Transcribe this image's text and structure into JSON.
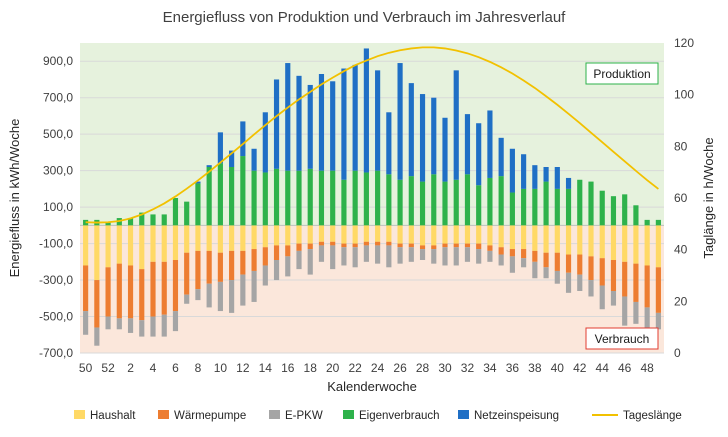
{
  "chart_data": {
    "type": "bar",
    "title": "Energiefluss von Produktion und Verbrauch im Jahresverlauf",
    "xlabel": "Kalenderwoche",
    "ylabel": "Energiefluss in kWh/Woche",
    "y2label": "Taglänge in h/Woche",
    "ylim": [
      -700,
      1000
    ],
    "y2lim": [
      0,
      120
    ],
    "y_ticks": [
      "-700,0",
      "-500,0",
      "-300,0",
      "-100,0",
      "100,0",
      "300,0",
      "500,0",
      "700,0",
      "900,0"
    ],
    "y2_ticks": [
      "0",
      "20",
      "40",
      "60",
      "80",
      "100",
      "120"
    ],
    "x_tick_labels": [
      "50",
      "52",
      "2",
      "4",
      "6",
      "8",
      "10",
      "12",
      "14",
      "16",
      "18",
      "20",
      "22",
      "24",
      "26",
      "28",
      "30",
      "32",
      "34",
      "36",
      "38",
      "40",
      "42",
      "44",
      "46",
      "48"
    ],
    "categories": [
      "50",
      "51",
      "52",
      "1",
      "2",
      "3",
      "4",
      "5",
      "6",
      "7",
      "8",
      "9",
      "10",
      "11",
      "12",
      "13",
      "14",
      "15",
      "16",
      "17",
      "18",
      "19",
      "20",
      "21",
      "22",
      "23",
      "24",
      "25",
      "26",
      "27",
      "28",
      "29",
      "30",
      "31",
      "32",
      "33",
      "34",
      "35",
      "36",
      "37",
      "38",
      "39",
      "40",
      "41",
      "42",
      "43",
      "44",
      "45",
      "46",
      "47",
      "48",
      "49"
    ],
    "series": [
      {
        "name": "Haushalt",
        "color": "#FFD966",
        "values": [
          -220,
          -300,
          -230,
          -210,
          -220,
          -240,
          -200,
          -200,
          -190,
          -150,
          -140,
          -140,
          -150,
          -140,
          -140,
          -130,
          -120,
          -110,
          -110,
          -100,
          -100,
          -90,
          -90,
          -100,
          -100,
          -90,
          -90,
          -90,
          -100,
          -100,
          -110,
          -110,
          -100,
          -100,
          -100,
          -100,
          -110,
          -120,
          -130,
          -130,
          -140,
          -150,
          -150,
          -160,
          -160,
          -170,
          -180,
          -190,
          -200,
          -210,
          -220,
          -230
        ]
      },
      {
        "name": "Wärmepumpe",
        "color": "#ED7D31",
        "values": [
          -250,
          -260,
          -270,
          -300,
          -290,
          -280,
          -300,
          -290,
          -280,
          -230,
          -210,
          -180,
          -160,
          -160,
          -130,
          -120,
          -100,
          -80,
          -60,
          -40,
          -30,
          -20,
          -20,
          -20,
          -20,
          -20,
          -20,
          -20,
          -20,
          -20,
          -20,
          -20,
          -20,
          -20,
          -20,
          -30,
          -30,
          -40,
          -40,
          -50,
          -60,
          -80,
          -100,
          -100,
          -110,
          -130,
          -150,
          -170,
          -190,
          -210,
          -230,
          -250
        ]
      },
      {
        "name": "E-PKW",
        "color": "#A5A5A5",
        "values": [
          -130,
          -100,
          -70,
          -60,
          -80,
          -90,
          -110,
          -120,
          -110,
          -50,
          -60,
          -130,
          -160,
          -180,
          -170,
          -170,
          -110,
          -110,
          -110,
          -100,
          -140,
          -90,
          -130,
          -100,
          -110,
          -90,
          -100,
          -120,
          -90,
          -80,
          -60,
          -80,
          -100,
          -100,
          -80,
          -80,
          -60,
          -60,
          -90,
          -50,
          -90,
          -60,
          -70,
          -110,
          -90,
          -90,
          -130,
          -80,
          -160,
          -120,
          -160,
          -90
        ]
      },
      {
        "name": "Eigenverbrauch",
        "color": "#2EB24B",
        "values": [
          30,
          30,
          20,
          40,
          40,
          70,
          60,
          60,
          150,
          130,
          230,
          320,
          340,
          320,
          380,
          300,
          290,
          310,
          300,
          300,
          310,
          300,
          300,
          250,
          300,
          290,
          300,
          280,
          250,
          270,
          240,
          280,
          240,
          250,
          280,
          220,
          260,
          270,
          180,
          200,
          200,
          240,
          200,
          200,
          250,
          240,
          190,
          160,
          170,
          110,
          30,
          30
        ]
      },
      {
        "name": "Netzeinspeisung",
        "color": "#1F6FC5",
        "values": [
          0,
          0,
          0,
          0,
          0,
          0,
          0,
          0,
          0,
          0,
          10,
          10,
          170,
          90,
          190,
          120,
          330,
          490,
          590,
          520,
          460,
          530,
          490,
          610,
          580,
          680,
          550,
          340,
          640,
          510,
          480,
          420,
          350,
          600,
          330,
          340,
          370,
          210,
          240,
          190,
          130,
          80,
          120,
          60,
          0,
          0,
          0,
          0,
          0,
          0,
          0,
          0
        ]
      },
      {
        "name": "Tageslänge",
        "color": "#F2C100",
        "type": "line",
        "axis": "right",
        "values": [
          50.6,
          50.5,
          50.6,
          51.1,
          52.1,
          53.6,
          55.6,
          57.9,
          60.6,
          63.6,
          66.8,
          70.2,
          73.7,
          77.3,
          80.9,
          84.6,
          88.2,
          91.7,
          95.0,
          98.2,
          101.1,
          104.0,
          106.6,
          109.1,
          111.4,
          113.2,
          114.9,
          116.2,
          117.2,
          117.9,
          118.3,
          118.3,
          117.9,
          117.1,
          116.0,
          114.5,
          112.7,
          110.6,
          108.2,
          105.5,
          102.6,
          99.4,
          96.1,
          92.6,
          89.0,
          85.3,
          81.6,
          77.9,
          74.2,
          70.5,
          66.9,
          63.5
        ]
      }
    ],
    "legend": {
      "position": "bottom",
      "entries": [
        "Haushalt",
        "Wärmepumpe",
        "E-PKW",
        "Eigenverbrauch",
        "Netzeinspeisung",
        "Tageslänge"
      ]
    },
    "annotations": {
      "production": "Produktion",
      "consumption": "Verbrauch"
    },
    "colors": {
      "production_bg": "#E6F2DD",
      "consumption_bg": "#FBE7DB",
      "production_box": "#2EB24B",
      "consumption_box": "#E03C31"
    }
  }
}
